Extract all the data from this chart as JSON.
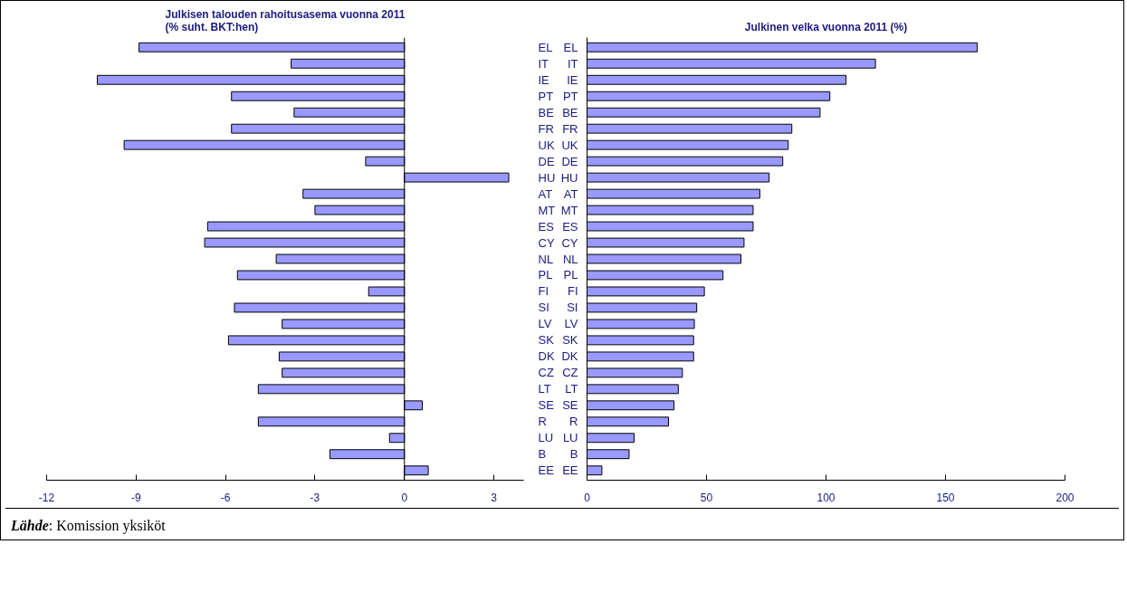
{
  "chart_data": [
    {
      "type": "bar",
      "orientation": "horizontal",
      "title": "Julkisen talouden rahoitusasema vuonna 2011\n(% suht. BKT:hen)",
      "categories": [
        "EL",
        "IT",
        "IE",
        "PT",
        "BE",
        "FR",
        "UK",
        "DE",
        "HU",
        "AT",
        "MT",
        "ES",
        "CY",
        "NL",
        "PL",
        "FI",
        "SI",
        "LV",
        "SK",
        "DK",
        "CZ",
        "LT",
        "SE",
        "R",
        "LU",
        "B",
        "EE"
      ],
      "values": [
        -8.9,
        -3.8,
        -10.3,
        -5.8,
        -3.7,
        -5.8,
        -9.4,
        -1.3,
        3.5,
        -3.4,
        -3.0,
        -6.6,
        -6.7,
        -4.3,
        -5.6,
        -1.2,
        -5.7,
        -4.1,
        -5.9,
        -4.2,
        -4.1,
        -4.9,
        0.6,
        -4.9,
        -0.5,
        -2.5,
        0.8
      ],
      "color": "#9999ff",
      "xlim": [
        -12,
        4
      ],
      "xticks": [
        -12,
        -9,
        -6,
        -3,
        0,
        3
      ]
    },
    {
      "type": "bar",
      "orientation": "horizontal",
      "title": "Julkinen velka vuonna 2011 (%)",
      "categories": [
        "EL",
        "IT",
        "IE",
        "PT",
        "BE",
        "FR",
        "UK",
        "DE",
        "HU",
        "AT",
        "MT",
        "ES",
        "CY",
        "NL",
        "PL",
        "FI",
        "SI",
        "LV",
        "SK",
        "DK",
        "CZ",
        "LT",
        "SE",
        "R",
        "LU",
        "B",
        "EE"
      ],
      "values": [
        163.3,
        120.7,
        108.4,
        101.6,
        97.5,
        85.7,
        84.2,
        81.9,
        76.2,
        72.3,
        69.5,
        69.5,
        65.7,
        64.4,
        56.9,
        49.1,
        45.9,
        44.9,
        44.6,
        44.6,
        39.9,
        38.2,
        36.4,
        34.1,
        19.7,
        17.6,
        6.2
      ],
      "color": "#9999ff",
      "xlim": [
        0,
        200
      ],
      "xticks": [
        0,
        50,
        100,
        150,
        200
      ],
      "annotations": [
        "Lähde: Komission yksiköt"
      ]
    }
  ]
}
